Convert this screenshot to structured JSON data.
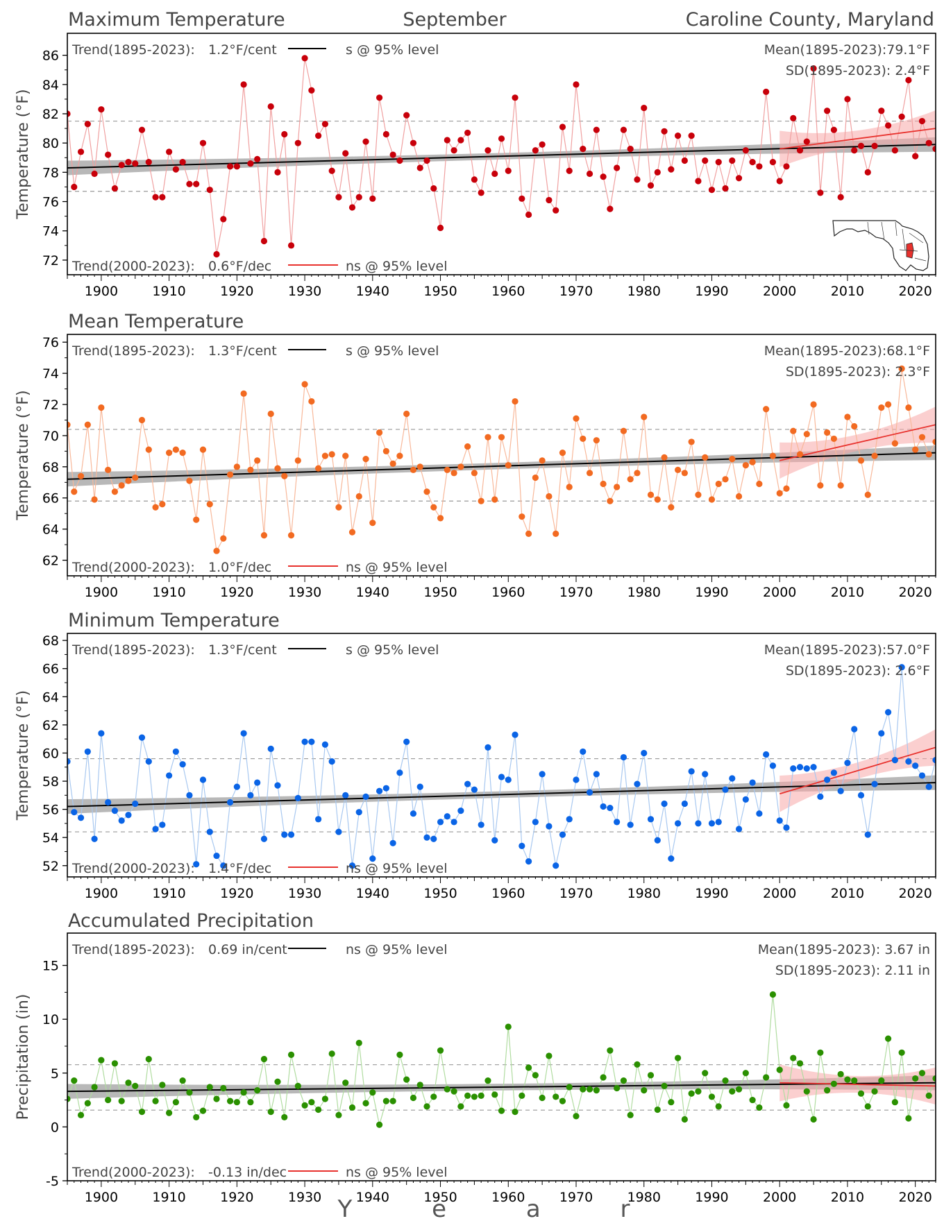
{
  "header": {
    "left": "Maximum Temperature",
    "center": "September",
    "right": "Caroline County, Maryland"
  },
  "xaxis": {
    "label": "Y e a r",
    "range": [
      1895,
      2023
    ],
    "ticks": [
      1900,
      1910,
      1920,
      1930,
      1940,
      1950,
      1960,
      1970,
      1980,
      1990,
      2000,
      2010,
      2020
    ]
  },
  "colors": {
    "long_trend": "#000000",
    "recent_trend": "#e8312d",
    "band_long": "#a0a0a0",
    "band_recent": "#f7a8a8",
    "sd_lines": "#999999"
  },
  "chart_data": [
    {
      "type": "line",
      "title": "Maximum Temperature",
      "ylabel": "Temperature (°F)",
      "ylim": [
        71,
        87.5
      ],
      "yticks": [
        72,
        74,
        76,
        78,
        80,
        82,
        84,
        86
      ],
      "color": "#c8000a",
      "line_color": "#f0a0a0",
      "mean": 79.1,
      "sd": 2.4,
      "trend_long": {
        "label": "Trend(1895-2023):",
        "value": "1.2°F/cent",
        "sig": "s @ 95% level",
        "start": 78.3,
        "end": 79.9
      },
      "trend_recent": {
        "label": "Trend(2000-2023):",
        "value": "0.6°F/dec",
        "sig": "ns @ 95% level",
        "start": 79.6,
        "end": 81.0
      },
      "mean_label": "Mean(1895-2023):79.1°F",
      "sd_label": "SD(1895-2023): 2.4°F",
      "x_start": 1895,
      "values": [
        82.0,
        77.0,
        79.4,
        81.3,
        77.9,
        82.3,
        79.2,
        76.9,
        78.5,
        78.7,
        78.6,
        80.9,
        78.7,
        76.3,
        76.3,
        79.4,
        78.2,
        78.7,
        77.2,
        77.2,
        80.0,
        76.8,
        72.4,
        74.8,
        78.4,
        78.4,
        84.0,
        78.6,
        78.9,
        73.3,
        82.5,
        78.0,
        80.6,
        73.0,
        80.0,
        85.8,
        83.6,
        80.5,
        81.3,
        78.1,
        76.3,
        79.3,
        75.6,
        76.3,
        80.1,
        76.2,
        83.1,
        80.6,
        79.2,
        78.8,
        81.9,
        80.0,
        78.3,
        78.8,
        76.9,
        74.2,
        80.2,
        79.5,
        80.2,
        80.7,
        77.5,
        76.6,
        79.5,
        77.9,
        80.3,
        78.1,
        83.1,
        76.2,
        75.1,
        79.5,
        79.9,
        76.1,
        75.4,
        81.1,
        78.1,
        84.0,
        79.6,
        77.9,
        80.9,
        77.7,
        75.5,
        78.3,
        80.9,
        79.6,
        77.5,
        82.4,
        77.1,
        78.0,
        80.8,
        78.2,
        80.5,
        78.8,
        80.5,
        77.4,
        78.8,
        76.8,
        78.7,
        76.9,
        78.8,
        77.6,
        79.5,
        78.7,
        78.4,
        83.5,
        78.7,
        77.4,
        78.4,
        81.7,
        79.5,
        80.1,
        85.1,
        76.6,
        82.2,
        80.9,
        76.3,
        83.0,
        79.5,
        79.8,
        78.0,
        79.8,
        82.2,
        81.2,
        79.5,
        81.8,
        84.3,
        79.1,
        81.5,
        80.0,
        79.6
      ]
    },
    {
      "type": "line",
      "title": "Mean Temperature",
      "ylabel": "Temperature (°F)",
      "ylim": [
        61,
        76.5
      ],
      "yticks": [
        62,
        64,
        66,
        68,
        70,
        72,
        74,
        76
      ],
      "color": "#f26a21",
      "line_color": "#f8b89a",
      "mean": 68.1,
      "sd": 2.3,
      "trend_long": {
        "label": "Trend(1895-2023):",
        "value": "1.3°F/cent",
        "sig": "s @ 95% level",
        "start": 67.2,
        "end": 68.9
      },
      "trend_recent": {
        "label": "Trend(2000-2023):",
        "value": "1.0°F/dec",
        "sig": "ns @ 95% level",
        "start": 68.4,
        "end": 70.7
      },
      "mean_label": "Mean(1895-2023):68.1°F",
      "sd_label": "SD(1895-2023): 2.3°F",
      "x_start": 1895,
      "values": [
        70.7,
        66.4,
        67.4,
        70.7,
        65.9,
        71.8,
        67.8,
        66.4,
        66.8,
        67.1,
        67.3,
        71.0,
        69.1,
        65.4,
        65.6,
        68.9,
        69.1,
        68.9,
        67.1,
        64.6,
        69.1,
        65.6,
        62.6,
        63.4,
        67.5,
        68.0,
        72.7,
        67.8,
        68.4,
        63.6,
        71.4,
        67.9,
        67.4,
        63.6,
        68.4,
        73.3,
        72.2,
        67.9,
        68.7,
        68.8,
        65.4,
        68.7,
        63.8,
        66.1,
        68.5,
        64.4,
        70.2,
        69.0,
        68.2,
        68.7,
        71.4,
        67.8,
        68.0,
        66.4,
        65.4,
        64.7,
        67.8,
        67.6,
        68.0,
        69.3,
        67.6,
        65.8,
        69.9,
        65.9,
        69.9,
        68.1,
        72.2,
        64.8,
        63.7,
        67.3,
        68.4,
        66.1,
        63.7,
        68.9,
        66.7,
        71.1,
        69.8,
        67.6,
        69.7,
        66.9,
        65.8,
        66.7,
        70.3,
        67.2,
        67.6,
        71.2,
        66.2,
        65.9,
        68.6,
        65.4,
        67.8,
        67.6,
        69.6,
        66.2,
        68.6,
        65.9,
        66.9,
        67.2,
        68.5,
        66.1,
        68.1,
        68.3,
        66.9,
        71.7,
        68.7,
        66.3,
        66.6,
        70.3,
        68.8,
        70.1,
        72.0,
        66.8,
        70.2,
        69.8,
        66.8,
        71.2,
        70.6,
        68.4,
        66.2,
        68.7,
        71.8,
        72.0,
        69.5,
        74.3,
        71.8,
        69.1,
        69.9,
        68.8,
        69.6
      ]
    },
    {
      "type": "line",
      "title": "Minimum Temperature",
      "ylabel": "Temperature (°F)",
      "ylim": [
        51.2,
        68.5
      ],
      "yticks": [
        52,
        54,
        56,
        58,
        60,
        62,
        64,
        66,
        68
      ],
      "color": "#0a64e6",
      "line_color": "#a8c8f0",
      "mean": 57.0,
      "sd": 2.6,
      "trend_long": {
        "label": "Trend(1895-2023):",
        "value": "1.3°F/cent",
        "sig": "s @ 95% level",
        "start": 56.2,
        "end": 57.9
      },
      "trend_recent": {
        "label": "Trend(2000-2023):",
        "value": "1.4°F/dec",
        "sig": "ns @ 95% level",
        "start": 57.1,
        "end": 60.4
      },
      "mean_label": "Mean(1895-2023):57.0°F",
      "sd_label": "SD(1895-2023): 2.6°F",
      "x_start": 1895,
      "values": [
        59.4,
        55.8,
        55.4,
        60.1,
        53.9,
        61.4,
        56.5,
        55.9,
        55.2,
        55.6,
        56.4,
        61.1,
        59.4,
        54.6,
        54.9,
        58.4,
        60.1,
        59.2,
        57.0,
        52.1,
        58.1,
        54.4,
        52.7,
        52.0,
        56.5,
        57.6,
        61.4,
        57.0,
        57.9,
        53.9,
        60.3,
        57.7,
        54.2,
        54.2,
        56.8,
        60.8,
        60.8,
        55.3,
        60.6,
        59.4,
        54.4,
        57.0,
        52.0,
        55.8,
        56.9,
        52.5,
        57.3,
        57.5,
        53.6,
        58.6,
        60.8,
        55.7,
        57.6,
        54.0,
        53.9,
        55.1,
        55.5,
        55.1,
        55.9,
        57.8,
        57.4,
        54.9,
        60.4,
        53.8,
        58.3,
        58.1,
        61.3,
        53.4,
        52.3,
        55.1,
        58.5,
        54.8,
        52.0,
        54.2,
        55.3,
        58.1,
        60.1,
        57.2,
        58.5,
        56.2,
        56.1,
        55.1,
        59.7,
        54.9,
        57.8,
        60.0,
        55.3,
        53.8,
        56.4,
        52.5,
        55.0,
        56.4,
        58.7,
        55.0,
        58.5,
        55.0,
        55.1,
        57.4,
        58.2,
        54.6,
        56.7,
        57.9,
        55.7,
        59.9,
        59.1,
        55.2,
        54.7,
        58.9,
        59.0,
        58.9,
        59.0,
        56.9,
        58.1,
        58.6,
        57.3,
        59.3,
        61.7,
        57.0,
        54.2,
        57.8,
        61.4,
        62.9,
        59.5,
        66.1,
        59.4,
        59.1,
        58.4,
        57.6,
        59.5
      ]
    },
    {
      "type": "line",
      "title": "Accumulated Precipitation",
      "ylabel": "Precipitation (in)",
      "ylim": [
        -5,
        18
      ],
      "yticks": [
        -5,
        0,
        5,
        10,
        15
      ],
      "color": "#2a9000",
      "line_color": "#b0dca0",
      "mean": 3.67,
      "sd": 2.11,
      "trend_long": {
        "label": "Trend(1895-2023):",
        "value": "0.69 in/cent",
        "sig": "ns @ 95% level",
        "start": 3.3,
        "end": 4.1
      },
      "trend_recent": {
        "label": "Trend(2000-2023):",
        "value": "-0.13 in/dec",
        "sig": "ns @ 95% level",
        "start": 4.1,
        "end": 3.8
      },
      "mean_label": "Mean(1895-2023): 3.67 in",
      "sd_label": "SD(1895-2023): 2.11 in",
      "x_start": 1895,
      "values": [
        2.6,
        4.3,
        1.1,
        2.2,
        3.7,
        6.2,
        2.5,
        5.9,
        2.4,
        4.1,
        3.8,
        1.4,
        6.3,
        2.4,
        3.9,
        1.3,
        2.3,
        4.3,
        3.2,
        0.9,
        1.5,
        3.7,
        2.6,
        3.6,
        2.4,
        2.3,
        3.2,
        2.3,
        3.4,
        6.3,
        1.4,
        4.2,
        0.9,
        6.7,
        3.8,
        2.0,
        2.3,
        1.6,
        2.6,
        6.8,
        1.1,
        4.1,
        1.8,
        7.8,
        2.2,
        3.2,
        0.2,
        2.4,
        2.4,
        6.7,
        4.4,
        2.7,
        3.9,
        1.9,
        2.8,
        7.1,
        3.5,
        3.3,
        1.9,
        2.9,
        2.8,
        2.9,
        4.3,
        3.0,
        1.5,
        9.3,
        1.4,
        2.9,
        5.5,
        4.8,
        2.7,
        6.6,
        2.8,
        2.4,
        3.7,
        1.0,
        3.5,
        3.5,
        3.4,
        4.6,
        7.1,
        3.6,
        4.3,
        1.1,
        5.8,
        3.4,
        4.8,
        1.6,
        3.8,
        2.3,
        6.4,
        0.7,
        3.1,
        3.3,
        5.0,
        2.8,
        1.9,
        4.3,
        3.3,
        3.5,
        5.0,
        2.5,
        1.8,
        4.6,
        12.3,
        5.3,
        2.0,
        6.4,
        5.9,
        3.3,
        0.7,
        6.9,
        3.4,
        4.0,
        4.9,
        4.4,
        4.3,
        3.1,
        1.9,
        3.3,
        4.3,
        8.2,
        2.3,
        6.9,
        0.8,
        4.5,
        5.0,
        2.9,
        4.5
      ]
    }
  ]
}
